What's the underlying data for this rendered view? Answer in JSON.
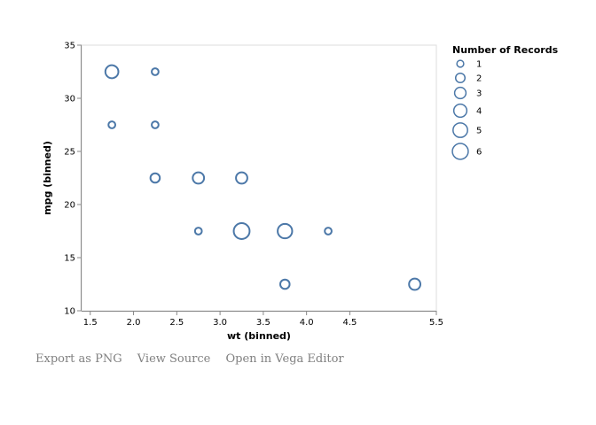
{
  "chart_data": {
    "type": "scatter",
    "xlabel": "wt (binned)",
    "ylabel": "mpg (binned)",
    "xlim": [
      1.4,
      5.5
    ],
    "ylim": [
      10,
      35
    ],
    "xticks": [
      "1.5",
      "2.0",
      "2.5",
      "3.0",
      "3.5",
      "4.0",
      "4.5",
      "5.5"
    ],
    "xtick_values": [
      1.5,
      2.0,
      2.5,
      3.0,
      3.5,
      4.0,
      4.5,
      5.5
    ],
    "yticks": [
      "10",
      "15",
      "20",
      "25",
      "30",
      "35"
    ],
    "ytick_values": [
      10,
      15,
      20,
      25,
      30,
      35
    ],
    "grid": false,
    "legend": {
      "title": "Number of Records",
      "placement": "right",
      "entries": [
        {
          "label": "1",
          "value": 1
        },
        {
          "label": "2",
          "value": 2
        },
        {
          "label": "3",
          "value": 3
        },
        {
          "label": "4",
          "value": 4
        },
        {
          "label": "5",
          "value": 5
        },
        {
          "label": "6",
          "value": 6
        }
      ]
    },
    "points": [
      {
        "x": 1.75,
        "y": 32.5,
        "count": 4
      },
      {
        "x": 2.25,
        "y": 32.5,
        "count": 1
      },
      {
        "x": 1.75,
        "y": 27.5,
        "count": 1
      },
      {
        "x": 2.25,
        "y": 27.5,
        "count": 1
      },
      {
        "x": 2.25,
        "y": 22.5,
        "count": 2
      },
      {
        "x": 2.75,
        "y": 22.5,
        "count": 3
      },
      {
        "x": 3.25,
        "y": 22.5,
        "count": 3
      },
      {
        "x": 2.75,
        "y": 17.5,
        "count": 1
      },
      {
        "x": 3.25,
        "y": 17.5,
        "count": 6
      },
      {
        "x": 3.75,
        "y": 17.5,
        "count": 5
      },
      {
        "x": 4.25,
        "y": 17.5,
        "count": 1
      },
      {
        "x": 3.75,
        "y": 12.5,
        "count": 2
      },
      {
        "x": 5.25,
        "y": 12.5,
        "count": 3
      }
    ],
    "colors": {
      "mark": "#4c78a8",
      "axis": "#888888",
      "frame": "#dddddd"
    }
  },
  "links": {
    "export_png": "Export as PNG",
    "view_source": "View Source",
    "open_editor": "Open in Vega Editor"
  }
}
